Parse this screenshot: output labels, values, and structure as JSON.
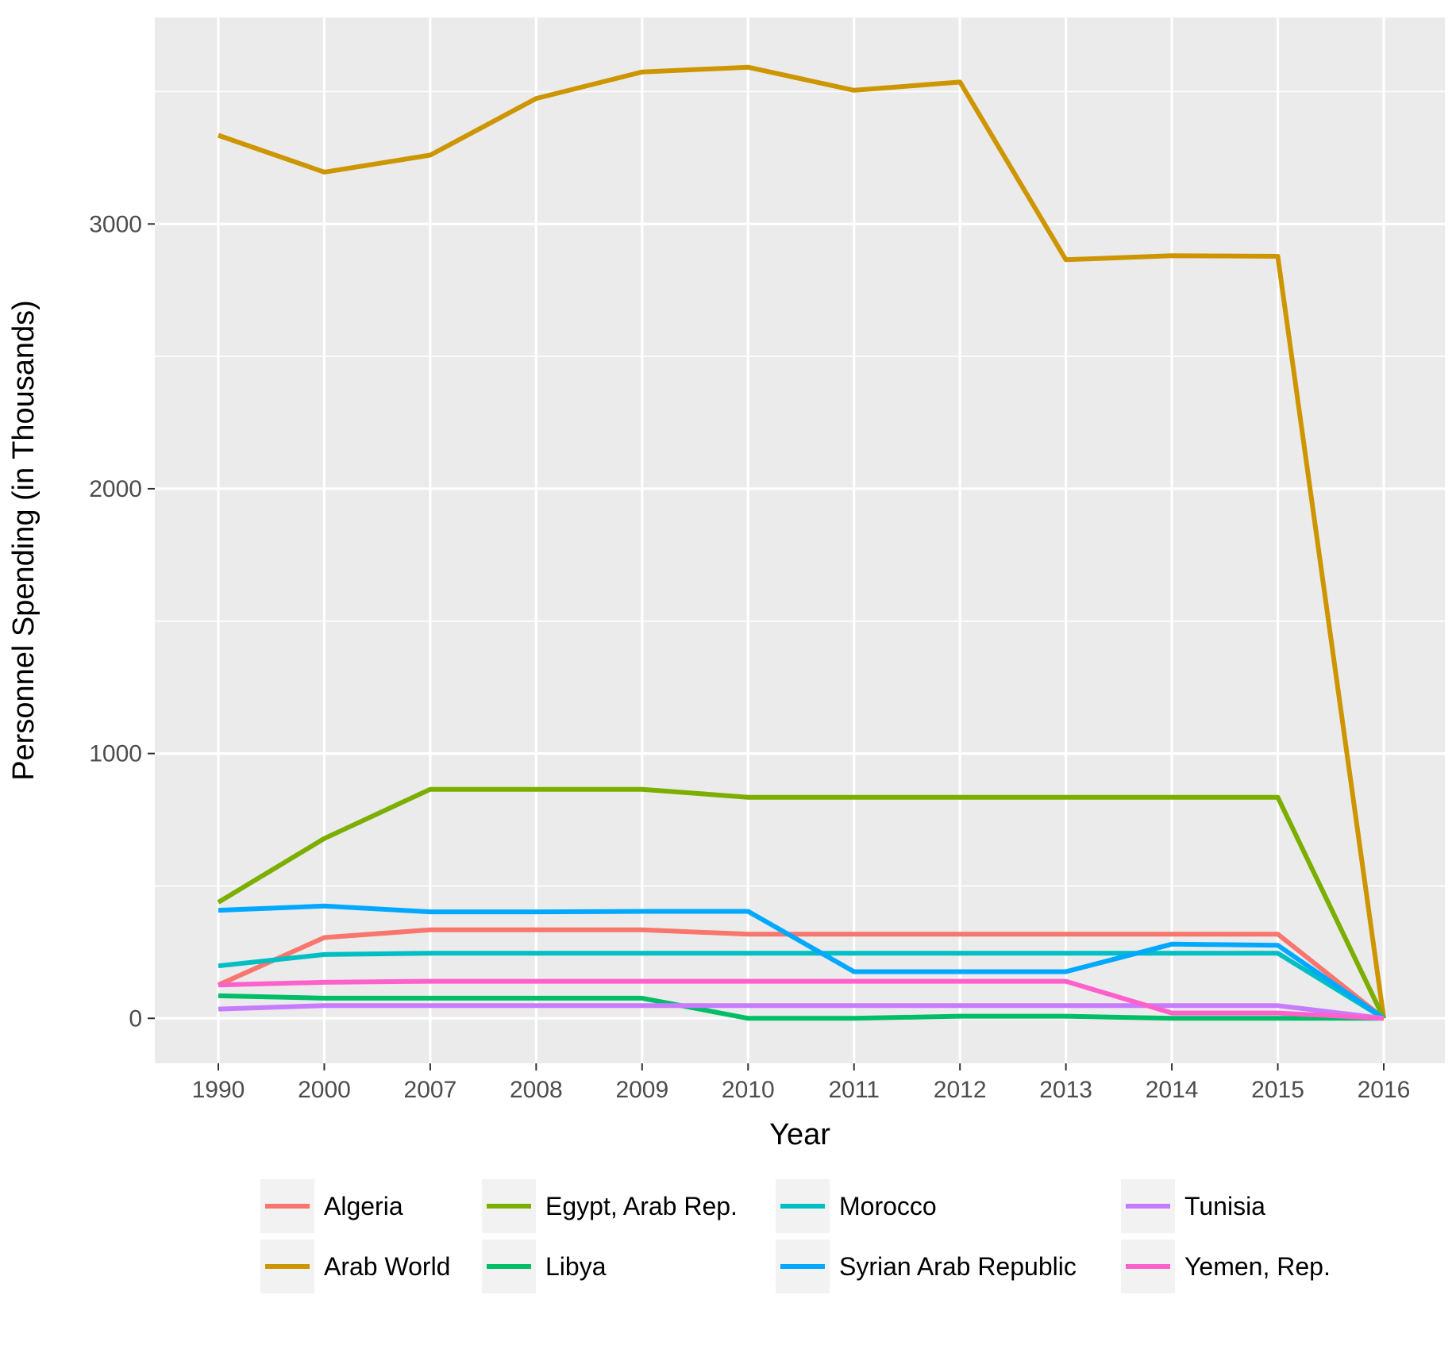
{
  "chart_data": {
    "type": "line",
    "title": "",
    "xlabel": "Year",
    "ylabel": "Personnel Spending (in Thousands)",
    "categories": [
      "1990",
      "2000",
      "2007",
      "2008",
      "2009",
      "2010",
      "2011",
      "2012",
      "2013",
      "2014",
      "2015",
      "2016"
    ],
    "ylim": [
      -170,
      3780
    ],
    "yticks": [
      0,
      1000,
      2000,
      3000
    ],
    "grid": true,
    "legend_position": "bottom",
    "series": [
      {
        "name": "Algeria",
        "color": "#F8766D",
        "values": [
          126,
          305,
          334,
          334,
          334,
          318,
          318,
          318,
          318,
          318,
          318,
          0
        ]
      },
      {
        "name": "Arab World",
        "color": "#CD9600",
        "values": [
          3335,
          3196,
          3260,
          3474,
          3574,
          3592,
          3505,
          3536,
          2865,
          2880,
          2878,
          0
        ]
      },
      {
        "name": "Egypt, Arab Rep.",
        "color": "#7CAE00",
        "values": [
          438,
          679,
          865,
          865,
          865,
          835,
          835,
          835,
          835,
          835,
          835,
          0
        ]
      },
      {
        "name": "Libya",
        "color": "#00BE67",
        "values": [
          85,
          76,
          76,
          76,
          76,
          0,
          0,
          8,
          8,
          0,
          0,
          0
        ]
      },
      {
        "name": "Morocco",
        "color": "#00BFC4",
        "values": [
          198,
          241,
          246,
          246,
          246,
          246,
          246,
          246,
          246,
          246,
          246,
          0
        ]
      },
      {
        "name": "Syrian Arab Republic",
        "color": "#00A9FF",
        "values": [
          408,
          424,
          402,
          402,
          404,
          404,
          176,
          176,
          176,
          280,
          276,
          0
        ]
      },
      {
        "name": "Tunisia",
        "color": "#C77CFF",
        "values": [
          35,
          48,
          48,
          48,
          48,
          48,
          48,
          48,
          48,
          48,
          48,
          0
        ]
      },
      {
        "name": "Yemen, Rep.",
        "color": "#FF61CC",
        "values": [
          126,
          136,
          140,
          140,
          140,
          140,
          140,
          140,
          140,
          20,
          20,
          0
        ]
      }
    ]
  }
}
